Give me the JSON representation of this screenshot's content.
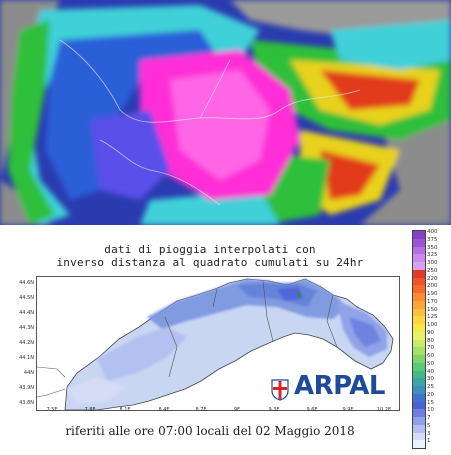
{
  "satellite_panel": {
    "description_colors": [
      "#8c8c8c",
      "#2a5fd8",
      "#3fd0d8",
      "#2fbf3a",
      "#e8d21e",
      "#e23a1e",
      "#ff2dd6"
    ]
  },
  "rain_map": {
    "title_line_1": "dati di pioggia interpolati con",
    "title_line_2": "inverso distanza al quadrato cumulati su 24hr",
    "footer": "riferiti alle ore 07:00 locali del 02 Maggio 2018",
    "latitude_labels": [
      "44.6N",
      "44.5N",
      "44.4N",
      "44.3N",
      "44.2N",
      "44.1N",
      "44N",
      "43.9N",
      "43.8N"
    ],
    "longitude_labels": [
      "7.5E",
      "7.8E",
      "8.1E",
      "8.4E",
      "8.7E",
      "9E",
      "9.3E",
      "9.6E",
      "9.9E",
      "10.2E"
    ],
    "logo_text": "ARPAL",
    "colorbar": {
      "levels": [
        "400",
        "375",
        "350",
        "325",
        "300",
        "250",
        "220",
        "200",
        "190",
        "170",
        "150",
        "125",
        "100",
        "90",
        "80",
        "70",
        "60",
        "50",
        "40",
        "30",
        "25",
        "20",
        "15",
        "10",
        "7",
        "5",
        "3",
        "1"
      ],
      "colors": [
        "#8a3fc9",
        "#9d55d6",
        "#b46fe3",
        "#c98aec",
        "#d6a3f2",
        "#e23a28",
        "#f0502a",
        "#f86a2a",
        "#ff8a30",
        "#ffa436",
        "#ffc03c",
        "#ffd640",
        "#f5e84a",
        "#e8f06a",
        "#c8ec6a",
        "#a6e06a",
        "#7fd46a",
        "#5ac874",
        "#43b88a",
        "#3aa6a6",
        "#3c8fc0",
        "#3c74d0",
        "#4a62d8",
        "#6a7fe0",
        "#8ea0e8",
        "#b2c0f0",
        "#d4dcf6",
        "#eef2fb"
      ]
    }
  }
}
